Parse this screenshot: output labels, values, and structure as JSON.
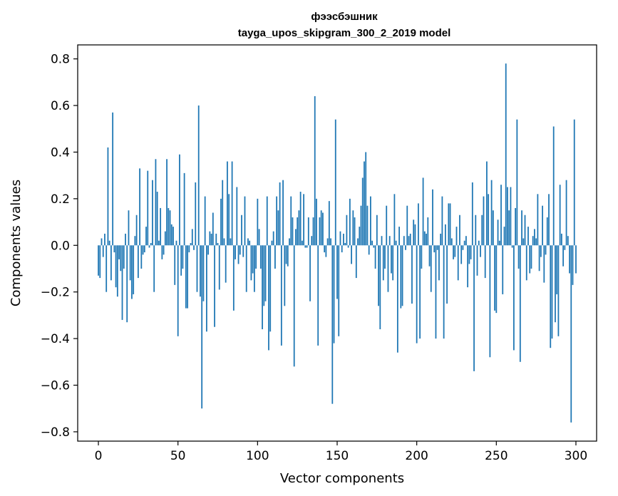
{
  "chart_data": {
    "type": "bar",
    "title_line1": "фээсбэшник",
    "title_line2": "tayga_upos_skipgram_300_2_2019 model",
    "xlabel": "Vector components",
    "ylabel": "Components values",
    "xlim": [
      -13,
      313
    ],
    "ylim": [
      -0.84,
      0.86
    ],
    "xticks": [
      0,
      50,
      100,
      150,
      200,
      250,
      300
    ],
    "yticks": [
      -0.8,
      -0.6,
      -0.4,
      -0.2,
      0.0,
      0.2,
      0.4,
      0.6,
      0.8
    ],
    "ytick_labels": [
      "−0.8",
      "−0.6",
      "−0.4",
      "−0.2",
      "0.0",
      "0.2",
      "0.4",
      "0.6",
      "0.8"
    ],
    "bar_color": "#1f77b4",
    "grid": false,
    "values": [
      -0.13,
      -0.14,
      0.03,
      -0.05,
      0.05,
      -0.2,
      0.42,
      0.02,
      -0.15,
      0.57,
      -0.03,
      -0.18,
      -0.22,
      -0.06,
      -0.11,
      -0.32,
      -0.1,
      0.05,
      -0.33,
      0.15,
      -0.15,
      -0.23,
      -0.21,
      0.04,
      0.13,
      -0.14,
      0.33,
      -0.1,
      -0.04,
      -0.03,
      0.08,
      0.32,
      -0.01,
      0.01,
      0.28,
      -0.2,
      0.37,
      0.23,
      0.02,
      0.16,
      -0.06,
      -0.04,
      0.06,
      0.37,
      0.16,
      0.15,
      0.09,
      0.08,
      -0.17,
      0.02,
      -0.39,
      0.39,
      -0.13,
      -0.1,
      0.31,
      -0.27,
      -0.27,
      -0.03,
      0.01,
      0.07,
      -0.02,
      0.27,
      -0.2,
      0.6,
      -0.22,
      -0.7,
      -0.24,
      0.21,
      -0.37,
      -0.04,
      0.06,
      0.05,
      0.14,
      -0.35,
      0.05,
      0.01,
      -0.19,
      0.2,
      0.28,
      0.03,
      -0.16,
      0.36,
      0.22,
      0.03,
      0.36,
      -0.28,
      -0.06,
      0.25,
      -0.08,
      -0.04,
      0.13,
      -0.05,
      0.21,
      -0.2,
      0.03,
      0.02,
      -0.15,
      -0.12,
      -0.2,
      -0.1,
      0.2,
      0.07,
      -0.1,
      -0.36,
      -0.26,
      -0.24,
      0.21,
      -0.45,
      -0.37,
      0.02,
      0.06,
      -0.1,
      0.21,
      0.15,
      0.27,
      -0.43,
      0.28,
      -0.26,
      -0.08,
      -0.09,
      0.03,
      0.21,
      0.12,
      -0.52,
      0.07,
      0.12,
      0.15,
      0.23,
      0.02,
      0.22,
      -0.01,
      -0.01,
      0.12,
      -0.24,
      0.04,
      0.12,
      0.64,
      0.2,
      -0.43,
      0.12,
      0.15,
      0.14,
      -0.03,
      -0.05,
      0.03,
      0.19,
      0.03,
      -0.68,
      -0.42,
      0.54,
      -0.23,
      -0.39,
      0.06,
      -0.03,
      0.05,
      0.01,
      0.13,
      -0.01,
      0.2,
      -0.08,
      0.15,
      0.12,
      -0.14,
      0.03,
      0.08,
      0.17,
      0.29,
      0.36,
      0.4,
      0.17,
      -0.04,
      0.21,
      0.02,
      -0.01,
      -0.1,
      0.13,
      -0.26,
      -0.36,
      0.04,
      -0.15,
      -0.1,
      0.17,
      -0.2,
      0.04,
      -0.12,
      -0.15,
      0.22,
      0.02,
      -0.46,
      0.08,
      -0.27,
      -0.26,
      0.04,
      -0.02,
      0.17,
      0.04,
      0.05,
      -0.25,
      0.11,
      0.09,
      -0.42,
      0.18,
      -0.4,
      -0.1,
      0.29,
      0.06,
      0.05,
      0.12,
      -0.09,
      -0.2,
      0.24,
      -0.03,
      -0.4,
      -0.02,
      -0.15,
      0.05,
      0.21,
      -0.4,
      0.09,
      -0.25,
      0.18,
      0.18,
      0.03,
      -0.06,
      -0.05,
      0.08,
      -0.15,
      0.13,
      -0.08,
      -0.02,
      0.02,
      0.04,
      -0.18,
      -0.08,
      -0.06,
      0.27,
      -0.54,
      0.13,
      -0.13,
      0.02,
      -0.05,
      0.13,
      0.21,
      -0.14,
      0.36,
      0.22,
      -0.48,
      0.28,
      0.15,
      -0.28,
      -0.29,
      0.11,
      0.02,
      0.26,
      -0.21,
      0.08,
      0.78,
      0.25,
      0.15,
      0.25,
      -0.01,
      -0.45,
      0.16,
      0.54,
      -0.1,
      -0.5,
      0.15,
      0.03,
      0.13,
      -0.15,
      0.08,
      -0.12,
      -0.1,
      0.04,
      0.07,
      0.03,
      0.22,
      -0.11,
      -0.05,
      0.17,
      -0.16,
      -0.04,
      0.12,
      0.22,
      -0.44,
      -0.4,
      0.51,
      -0.33,
      -0.21,
      -0.39,
      0.26,
      0.05,
      -0.09,
      -0.02,
      0.28,
      0.04,
      -0.12,
      -0.76,
      -0.17,
      0.54,
      -0.12
    ]
  }
}
